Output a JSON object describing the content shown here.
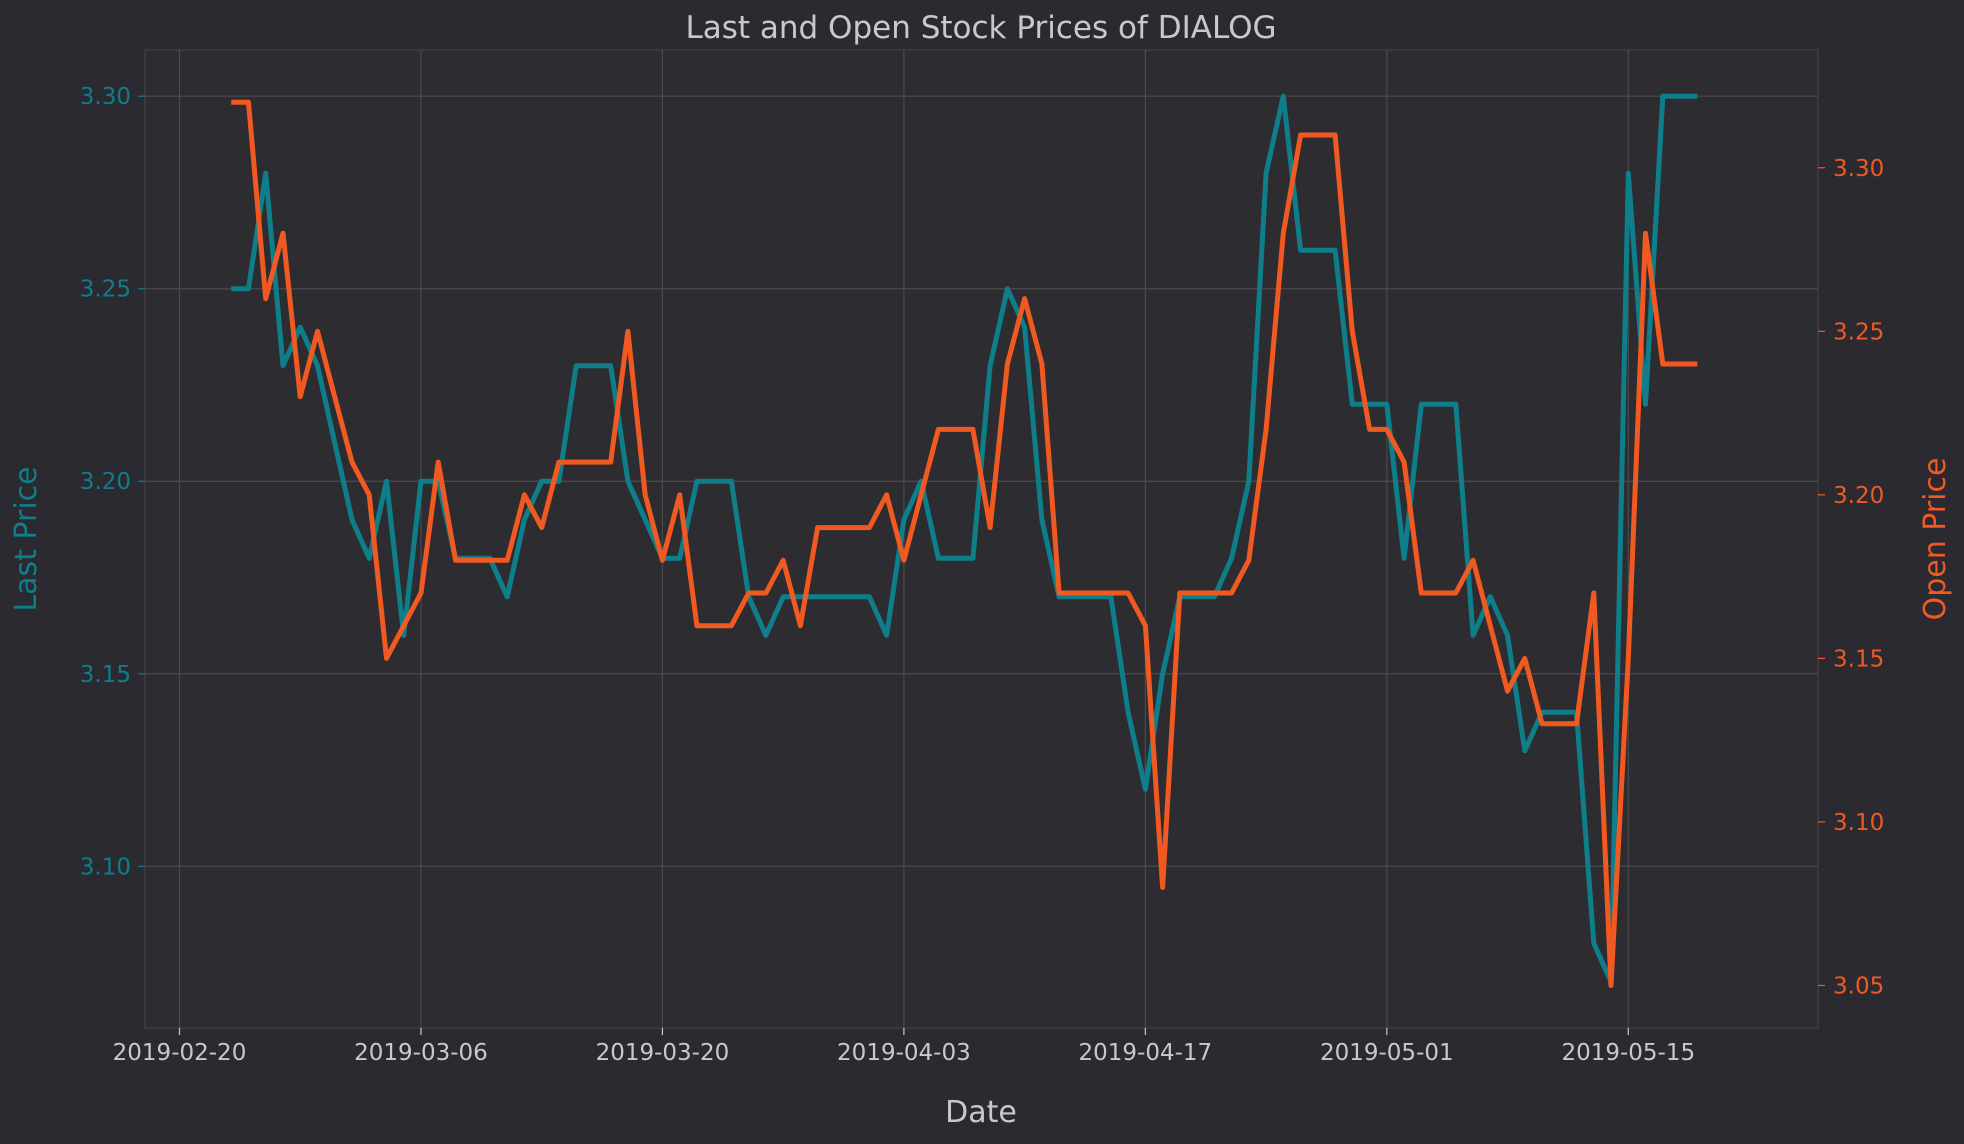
{
  "colors": {
    "background": "#2b2a30",
    "plot_background": "#2d2c31",
    "grid": "#4b4a4f",
    "spine": "#3e3d42",
    "text": "#c9c9c9",
    "last": "#0e7f8a",
    "open": "#f05a22"
  },
  "chart_data": {
    "type": "line",
    "title": "Last and Open Stock Prices of DIALOG",
    "xlabel": "Date",
    "ylabel": "Last Price",
    "y2label": "Open Price",
    "xlim": [
      "2019-02-18",
      "2019-05-26"
    ],
    "ylim": [
      3.058,
      3.312
    ],
    "y2lim": [
      3.037,
      3.336
    ],
    "x_ticks": [
      "2019-02-20",
      "2019-03-06",
      "2019-03-20",
      "2019-04-03",
      "2019-04-17",
      "2019-05-01",
      "2019-05-15"
    ],
    "y_ticks": [
      "3.10",
      "3.15",
      "3.20",
      "3.25",
      "3.30"
    ],
    "y2_ticks": [
      "3.05",
      "3.10",
      "3.15",
      "3.20",
      "3.25",
      "3.30"
    ],
    "grid": true,
    "legend": "none",
    "x": [
      "2019-02-23",
      "2019-02-24",
      "2019-02-25",
      "2019-02-26",
      "2019-02-27",
      "2019-02-28",
      "2019-03-01",
      "2019-03-02",
      "2019-03-03",
      "2019-03-04",
      "2019-03-05",
      "2019-03-06",
      "2019-03-07",
      "2019-03-08",
      "2019-03-09",
      "2019-03-10",
      "2019-03-11",
      "2019-03-12",
      "2019-03-13",
      "2019-03-14",
      "2019-03-15",
      "2019-03-16",
      "2019-03-17",
      "2019-03-18",
      "2019-03-19",
      "2019-03-20",
      "2019-03-21",
      "2019-03-22",
      "2019-03-23",
      "2019-03-24",
      "2019-03-25",
      "2019-03-26",
      "2019-03-27",
      "2019-03-28",
      "2019-03-29",
      "2019-03-30",
      "2019-03-31",
      "2019-04-01",
      "2019-04-02",
      "2019-04-03",
      "2019-04-04",
      "2019-04-05",
      "2019-04-06",
      "2019-04-07",
      "2019-04-08",
      "2019-04-09",
      "2019-04-10",
      "2019-04-11",
      "2019-04-12",
      "2019-04-13",
      "2019-04-14",
      "2019-04-15",
      "2019-04-16",
      "2019-04-17",
      "2019-04-18",
      "2019-04-19",
      "2019-04-20",
      "2019-04-21",
      "2019-04-22",
      "2019-04-23",
      "2019-04-24",
      "2019-04-25",
      "2019-04-26",
      "2019-04-27",
      "2019-04-28",
      "2019-04-29",
      "2019-04-30",
      "2019-05-01",
      "2019-05-02",
      "2019-05-03",
      "2019-05-04",
      "2019-05-05",
      "2019-05-06",
      "2019-05-07",
      "2019-05-08",
      "2019-05-09",
      "2019-05-10",
      "2019-05-11",
      "2019-05-12",
      "2019-05-13",
      "2019-05-14",
      "2019-05-15",
      "2019-05-16",
      "2019-05-17",
      "2019-05-18",
      "2019-05-19"
    ],
    "series": [
      {
        "name": "Last Price",
        "axis": "left",
        "values": [
          3.25,
          3.25,
          3.28,
          3.23,
          3.24,
          3.23,
          3.21,
          3.19,
          3.18,
          3.2,
          3.16,
          3.2,
          3.2,
          3.18,
          3.18,
          3.18,
          3.17,
          3.19,
          3.2,
          3.2,
          3.23,
          3.23,
          3.23,
          3.2,
          3.19,
          3.18,
          3.18,
          3.2,
          3.2,
          3.2,
          3.17,
          3.16,
          3.17,
          3.17,
          3.17,
          3.17,
          3.17,
          3.17,
          3.16,
          3.19,
          3.2,
          3.18,
          3.18,
          3.18,
          3.23,
          3.25,
          3.24,
          3.19,
          3.17,
          3.17,
          3.17,
          3.17,
          3.14,
          3.12,
          3.15,
          3.17,
          3.17,
          3.17,
          3.18,
          3.2,
          3.28,
          3.3,
          3.26,
          3.26,
          3.26,
          3.22,
          3.22,
          3.22,
          3.18,
          3.22,
          3.22,
          3.22,
          3.16,
          3.17,
          3.16,
          3.13,
          3.14,
          3.14,
          3.14,
          3.08,
          3.07,
          3.28,
          3.22,
          3.3,
          3.3,
          3.3
        ]
      },
      {
        "name": "Open Price",
        "axis": "right",
        "values": [
          3.32,
          3.32,
          3.26,
          3.28,
          3.23,
          3.25,
          3.23,
          3.21,
          3.2,
          3.15,
          3.16,
          3.17,
          3.21,
          3.18,
          3.18,
          3.18,
          3.18,
          3.2,
          3.19,
          3.21,
          3.21,
          3.21,
          3.21,
          3.25,
          3.2,
          3.18,
          3.2,
          3.16,
          3.16,
          3.16,
          3.17,
          3.17,
          3.18,
          3.16,
          3.19,
          3.19,
          3.19,
          3.19,
          3.2,
          3.18,
          3.2,
          3.22,
          3.22,
          3.22,
          3.19,
          3.24,
          3.26,
          3.24,
          3.17,
          3.17,
          3.17,
          3.17,
          3.17,
          3.16,
          3.08,
          3.17,
          3.17,
          3.17,
          3.17,
          3.18,
          3.22,
          3.28,
          3.31,
          3.31,
          3.31,
          3.25,
          3.22,
          3.22,
          3.21,
          3.17,
          3.17,
          3.17,
          3.18,
          3.16,
          3.14,
          3.15,
          3.13,
          3.13,
          3.13,
          3.17,
          3.05,
          3.15,
          3.28,
          3.24,
          3.24,
          3.24
        ]
      }
    ]
  }
}
